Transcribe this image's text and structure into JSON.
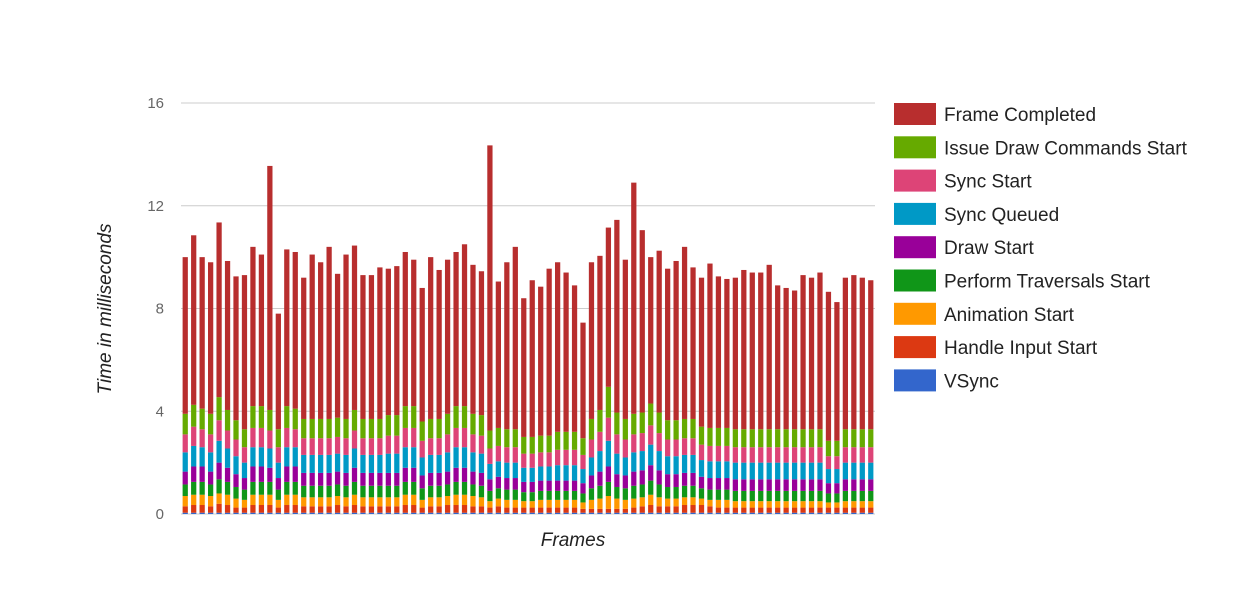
{
  "chart_data": {
    "type": "bar",
    "stacked": true,
    "title": "",
    "xlabel": "Frames",
    "ylabel": "Time in milliseconds",
    "ylim": [
      0,
      16
    ],
    "yticks": [
      0,
      4,
      8,
      12,
      16
    ],
    "grid": true,
    "legend_position": "right",
    "frames": 82,
    "series": [
      {
        "name": "VSync",
        "color": "#3366cc",
        "values": [
          0.05,
          0.05,
          0.05,
          0.05,
          0.05,
          0.05,
          0.05,
          0.05,
          0.05,
          0.05,
          0.05,
          0.05,
          0.05,
          0.05,
          0.05,
          0.05,
          0.05,
          0.05,
          0.05,
          0.05,
          0.05,
          0.05,
          0.05,
          0.05,
          0.05,
          0.05,
          0.05,
          0.05,
          0.05,
          0.05,
          0.05,
          0.05,
          0.05,
          0.05,
          0.05,
          0.05,
          0.05,
          0.05,
          0.05,
          0.05,
          0.05,
          0.05,
          0.05,
          0.05,
          0.05,
          0.05,
          0.05,
          0.05,
          0.05,
          0.05,
          0.05,
          0.05,
          0.05,
          0.05,
          0.05,
          0.05,
          0.05,
          0.05,
          0.05,
          0.05,
          0.05,
          0.05,
          0.05,
          0.05,
          0.05,
          0.05,
          0.05,
          0.05,
          0.05,
          0.05,
          0.05,
          0.05,
          0.05,
          0.05,
          0.05,
          0.05,
          0.05,
          0.05,
          0.05,
          0.05,
          0.05,
          0.05
        ]
      },
      {
        "name": "Handle Input Start",
        "color": "#dc3912",
        "values": [
          0.25,
          0.3,
          0.3,
          0.25,
          0.35,
          0.3,
          0.2,
          0.2,
          0.3,
          0.3,
          0.3,
          0.2,
          0.3,
          0.3,
          0.25,
          0.25,
          0.25,
          0.25,
          0.3,
          0.25,
          0.3,
          0.25,
          0.25,
          0.25,
          0.25,
          0.25,
          0.3,
          0.3,
          0.2,
          0.25,
          0.25,
          0.3,
          0.3,
          0.3,
          0.25,
          0.25,
          0.2,
          0.25,
          0.2,
          0.2,
          0.2,
          0.2,
          0.2,
          0.2,
          0.2,
          0.2,
          0.2,
          0.15,
          0.15,
          0.15,
          0.15,
          0.15,
          0.15,
          0.2,
          0.25,
          0.3,
          0.25,
          0.25,
          0.25,
          0.3,
          0.3,
          0.3,
          0.25,
          0.2,
          0.2,
          0.2,
          0.2,
          0.2,
          0.2,
          0.2,
          0.2,
          0.2,
          0.2,
          0.2,
          0.2,
          0.2,
          0.2,
          0.2,
          0.2,
          0.2,
          0.2,
          0.2
        ]
      },
      {
        "name": "Animation Start",
        "color": "#ff9900",
        "values": [
          0.4,
          0.4,
          0.4,
          0.4,
          0.4,
          0.4,
          0.35,
          0.3,
          0.4,
          0.4,
          0.4,
          0.3,
          0.4,
          0.4,
          0.35,
          0.35,
          0.35,
          0.35,
          0.35,
          0.35,
          0.4,
          0.35,
          0.35,
          0.35,
          0.35,
          0.35,
          0.4,
          0.4,
          0.3,
          0.35,
          0.35,
          0.35,
          0.4,
          0.4,
          0.4,
          0.35,
          0.25,
          0.3,
          0.3,
          0.3,
          0.25,
          0.25,
          0.3,
          0.3,
          0.3,
          0.3,
          0.3,
          0.25,
          0.35,
          0.4,
          0.5,
          0.4,
          0.35,
          0.35,
          0.35,
          0.4,
          0.35,
          0.3,
          0.3,
          0.3,
          0.3,
          0.25,
          0.25,
          0.3,
          0.3,
          0.25,
          0.25,
          0.25,
          0.25,
          0.25,
          0.25,
          0.25,
          0.25,
          0.25,
          0.25,
          0.25,
          0.2,
          0.2,
          0.25,
          0.25,
          0.25,
          0.25
        ]
      },
      {
        "name": "Perform Traversals Start",
        "color": "#109618",
        "values": [
          0.45,
          0.5,
          0.5,
          0.45,
          0.55,
          0.5,
          0.45,
          0.4,
          0.5,
          0.5,
          0.5,
          0.4,
          0.5,
          0.5,
          0.45,
          0.45,
          0.45,
          0.45,
          0.45,
          0.45,
          0.5,
          0.45,
          0.45,
          0.45,
          0.45,
          0.45,
          0.5,
          0.5,
          0.45,
          0.45,
          0.45,
          0.45,
          0.5,
          0.5,
          0.45,
          0.45,
          0.4,
          0.4,
          0.4,
          0.4,
          0.35,
          0.35,
          0.35,
          0.35,
          0.35,
          0.35,
          0.35,
          0.35,
          0.45,
          0.5,
          0.55,
          0.45,
          0.45,
          0.5,
          0.5,
          0.55,
          0.5,
          0.45,
          0.45,
          0.45,
          0.45,
          0.4,
          0.4,
          0.4,
          0.4,
          0.4,
          0.4,
          0.4,
          0.4,
          0.4,
          0.4,
          0.4,
          0.4,
          0.4,
          0.4,
          0.4,
          0.35,
          0.35,
          0.4,
          0.4,
          0.4,
          0.4
        ]
      },
      {
        "name": "Draw Start",
        "color": "#990099",
        "values": [
          0.5,
          0.6,
          0.6,
          0.5,
          0.65,
          0.55,
          0.5,
          0.45,
          0.6,
          0.6,
          0.55,
          0.45,
          0.6,
          0.6,
          0.5,
          0.5,
          0.5,
          0.5,
          0.5,
          0.5,
          0.55,
          0.5,
          0.5,
          0.5,
          0.5,
          0.5,
          0.55,
          0.55,
          0.5,
          0.5,
          0.5,
          0.5,
          0.55,
          0.55,
          0.5,
          0.5,
          0.45,
          0.45,
          0.45,
          0.45,
          0.4,
          0.4,
          0.4,
          0.4,
          0.4,
          0.4,
          0.4,
          0.4,
          0.5,
          0.55,
          0.6,
          0.5,
          0.5,
          0.55,
          0.55,
          0.6,
          0.55,
          0.5,
          0.5,
          0.5,
          0.5,
          0.45,
          0.45,
          0.45,
          0.45,
          0.45,
          0.45,
          0.45,
          0.45,
          0.45,
          0.45,
          0.45,
          0.45,
          0.45,
          0.45,
          0.45,
          0.4,
          0.4,
          0.45,
          0.45,
          0.45,
          0.45
        ]
      },
      {
        "name": "Sync Queued",
        "color": "#0099c6",
        "values": [
          0.75,
          0.8,
          0.75,
          0.75,
          0.85,
          0.75,
          0.7,
          0.6,
          0.75,
          0.75,
          0.75,
          0.6,
          0.75,
          0.75,
          0.7,
          0.7,
          0.7,
          0.7,
          0.7,
          0.7,
          0.75,
          0.7,
          0.7,
          0.7,
          0.75,
          0.75,
          0.8,
          0.8,
          0.7,
          0.7,
          0.7,
          0.75,
          0.8,
          0.8,
          0.75,
          0.75,
          0.6,
          0.6,
          0.6,
          0.6,
          0.55,
          0.55,
          0.55,
          0.55,
          0.6,
          0.6,
          0.6,
          0.55,
          0.7,
          0.8,
          1.0,
          0.8,
          0.7,
          0.75,
          0.75,
          0.8,
          0.75,
          0.7,
          0.7,
          0.7,
          0.7,
          0.65,
          0.65,
          0.65,
          0.65,
          0.65,
          0.65,
          0.65,
          0.65,
          0.65,
          0.65,
          0.65,
          0.65,
          0.65,
          0.65,
          0.65,
          0.55,
          0.55,
          0.65,
          0.65,
          0.65,
          0.65
        ]
      },
      {
        "name": "Sync Start",
        "color": "#dd4477",
        "values": [
          0.7,
          0.75,
          0.7,
          0.7,
          0.8,
          0.7,
          0.65,
          0.6,
          0.75,
          0.75,
          0.7,
          0.6,
          0.75,
          0.7,
          0.65,
          0.65,
          0.65,
          0.65,
          0.65,
          0.65,
          0.7,
          0.65,
          0.65,
          0.65,
          0.7,
          0.7,
          0.75,
          0.75,
          0.65,
          0.65,
          0.65,
          0.7,
          0.75,
          0.75,
          0.7,
          0.7,
          0.6,
          0.6,
          0.6,
          0.6,
          0.55,
          0.55,
          0.55,
          0.55,
          0.6,
          0.6,
          0.6,
          0.55,
          0.7,
          0.75,
          0.9,
          0.75,
          0.7,
          0.7,
          0.7,
          0.75,
          0.7,
          0.65,
          0.65,
          0.65,
          0.65,
          0.6,
          0.6,
          0.6,
          0.6,
          0.6,
          0.6,
          0.6,
          0.6,
          0.6,
          0.6,
          0.6,
          0.6,
          0.6,
          0.6,
          0.6,
          0.5,
          0.5,
          0.6,
          0.6,
          0.6,
          0.6
        ]
      },
      {
        "name": "Issue Draw Commands Start",
        "color": "#66aa00",
        "values": [
          0.8,
          0.85,
          0.8,
          0.8,
          0.9,
          0.8,
          0.75,
          0.7,
          0.85,
          0.85,
          0.8,
          0.7,
          0.85,
          0.8,
          0.75,
          0.75,
          0.75,
          0.75,
          0.75,
          0.75,
          0.8,
          0.75,
          0.75,
          0.75,
          0.8,
          0.8,
          0.85,
          0.85,
          0.75,
          0.75,
          0.75,
          0.8,
          0.85,
          0.85,
          0.8,
          0.8,
          0.7,
          0.7,
          0.7,
          0.7,
          0.65,
          0.65,
          0.65,
          0.65,
          0.7,
          0.7,
          0.7,
          0.65,
          0.8,
          0.85,
          1.2,
          0.85,
          0.8,
          0.8,
          0.8,
          0.85,
          0.8,
          0.75,
          0.75,
          0.75,
          0.75,
          0.7,
          0.7,
          0.7,
          0.7,
          0.7,
          0.7,
          0.7,
          0.7,
          0.7,
          0.7,
          0.7,
          0.7,
          0.7,
          0.7,
          0.7,
          0.6,
          0.6,
          0.7,
          0.7,
          0.7,
          0.7
        ]
      },
      {
        "name": "Frame Completed",
        "color": "#b82e2e",
        "values": [
          6.1,
          6.6,
          5.9,
          5.9,
          6.8,
          5.8,
          5.6,
          6.0,
          6.2,
          5.9,
          9.5,
          4.5,
          6.1,
          6.1,
          5.5,
          6.4,
          6.1,
          6.7,
          5.6,
          6.4,
          6.4,
          5.6,
          5.6,
          5.9,
          5.7,
          5.8,
          6.0,
          5.7,
          5.2,
          6.3,
          5.8,
          6.0,
          6.0,
          6.3,
          5.8,
          5.6,
          11.1,
          5.7,
          6.5,
          7.1,
          5.4,
          6.1,
          5.8,
          6.5,
          6.6,
          6.2,
          5.7,
          4.5,
          6.1,
          6.0,
          6.2,
          7.5,
          6.2,
          9.0,
          7.1,
          5.7,
          6.3,
          5.9,
          6.2,
          6.7,
          5.9,
          5.8,
          6.4,
          5.9,
          5.8,
          5.9,
          6.2,
          6.1,
          6.1,
          6.4,
          5.6,
          5.5,
          5.4,
          6.0,
          5.9,
          6.1,
          5.8,
          5.4,
          5.9,
          6.0,
          5.9,
          5.8
        ]
      }
    ]
  }
}
